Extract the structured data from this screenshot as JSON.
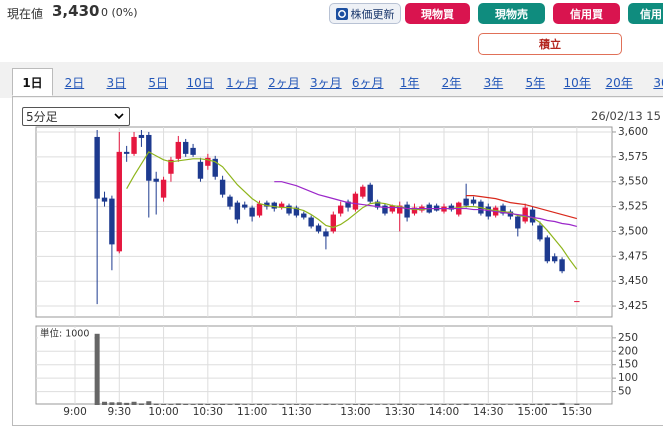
{
  "header": {
    "label": "現在値",
    "price": "3,430",
    "change": "0 (0%)"
  },
  "buttons": {
    "refresh": "株価更新",
    "cash_buy": "現物買",
    "cash_sell": "現物売",
    "margin_buy": "信用買",
    "margin_sell": "信用",
    "savings": "積立"
  },
  "tabs": [
    "1日",
    "2日",
    "3日",
    "5日",
    "10日",
    "1ヶ月",
    "2ヶ月",
    "3ヶ月",
    "6ヶ月",
    "1年",
    "2年",
    "3年",
    "5年",
    "10年",
    "20年",
    "30"
  ],
  "select": "5分足",
  "timestamp": "26/02/13 15",
  "chart_data": {
    "type": "candlestick",
    "categories": [
      "9:00",
      null,
      null,
      null,
      null,
      null,
      "9:30",
      null,
      null,
      null,
      null,
      null,
      "10:00",
      null,
      null,
      null,
      null,
      null,
      "10:30",
      null,
      null,
      null,
      null,
      null,
      "11:00",
      null,
      null,
      null,
      null,
      null,
      "11:30",
      null,
      null,
      null,
      null,
      null,
      null,
      null,
      "13:00",
      null,
      null,
      null,
      null,
      null,
      "13:30",
      null,
      null,
      null,
      null,
      null,
      "14:00",
      null,
      null,
      null,
      null,
      null,
      "14:30",
      null,
      null,
      null,
      null,
      null,
      "15:00",
      null,
      null,
      null,
      null,
      null,
      "15:30"
    ],
    "open": [
      null,
      null,
      null,
      3595,
      3534,
      3533,
      3480,
      3580,
      3578,
      3597,
      3597,
      3553,
      3534,
      3558,
      3573,
      3590,
      3584,
      3570,
      3566,
      3573,
      3552,
      3535,
      3529,
      3527,
      3524,
      3516,
      3529,
      3529,
      3524,
      3526,
      3524,
      3518,
      3514,
      3506,
      3500,
      3500,
      3518,
      3530,
      3522,
      3535,
      3547,
      3530,
      3526,
      3520,
      3518,
      3527,
      3518,
      3521,
      3527,
      3526,
      3520,
      3526,
      3517,
      3533,
      3532,
      3530,
      3525,
      3516,
      3526,
      3520,
      3515,
      3510,
      3522,
      3506,
      3494,
      3475,
      3472,
      null,
      3430
    ],
    "high": [
      null,
      null,
      null,
      3602,
      3540,
      3536,
      3600,
      3586,
      3600,
      3602,
      3600,
      3560,
      3555,
      3575,
      3596,
      3593,
      3588,
      3574,
      3578,
      3576,
      3556,
      3537,
      3531,
      3530,
      3526,
      3531,
      3531,
      3530,
      3530,
      3528,
      3526,
      3520,
      3516,
      3508,
      3503,
      3520,
      3530,
      3532,
      3540,
      3547,
      3549,
      3532,
      3528,
      3527,
      3530,
      3530,
      3528,
      3527,
      3529,
      3528,
      3528,
      3528,
      3530,
      3548,
      3535,
      3532,
      3528,
      3526,
      3528,
      3522,
      3517,
      3528,
      3525,
      3510,
      3496,
      3478,
      3474,
      null,
      3430
    ],
    "low": [
      null,
      null,
      null,
      3427,
      3525,
      3461,
      3478,
      3570,
      3576,
      3585,
      3514,
      3517,
      3530,
      3550,
      3570,
      3575,
      3575,
      3550,
      3562,
      3552,
      3534,
      3522,
      3508,
      3522,
      3510,
      3514,
      3522,
      3520,
      3522,
      3516,
      3514,
      3512,
      3503,
      3498,
      3482,
      3498,
      3515,
      3520,
      3520,
      3533,
      3528,
      3522,
      3516,
      3518,
      3500,
      3510,
      3516,
      3519,
      3518,
      3520,
      3518,
      3520,
      3515,
      3524,
      3526,
      3516,
      3512,
      3514,
      3516,
      3512,
      3495,
      3508,
      3506,
      3490,
      3468,
      3468,
      3458,
      null,
      3430
    ],
    "close": [
      null,
      null,
      null,
      3533,
      3530,
      3487,
      3580,
      3578,
      3595,
      3594,
      3551,
      3550,
      3552,
      3572,
      3590,
      3578,
      3577,
      3553,
      3574,
      3555,
      3537,
      3525,
      3512,
      3524,
      3515,
      3528,
      3525,
      3523,
      3528,
      3518,
      3516,
      3514,
      3505,
      3500,
      3495,
      3517,
      3526,
      3524,
      3538,
      3545,
      3530,
      3524,
      3518,
      3526,
      3526,
      3514,
      3524,
      3525,
      3519,
      3521,
      3525,
      3522,
      3529,
      3526,
      3528,
      3518,
      3515,
      3524,
      3518,
      3515,
      3503,
      3524,
      3509,
      3492,
      3470,
      3470,
      3460,
      null,
      3430
    ],
    "up_color": "#e5173f",
    "down_color": "#1d3a8f",
    "series": [
      {
        "color": "#8fb51c",
        "values": [
          null,
          null,
          null,
          null,
          null,
          null,
          null,
          3543,
          3556,
          3568,
          3580,
          3576,
          3572,
          3570,
          3571,
          3572,
          3573,
          3573,
          3572,
          3570,
          3565,
          3556,
          3547,
          3540,
          3533,
          3528,
          3526,
          3525,
          3524,
          3524,
          3523,
          3521,
          3517,
          3512,
          3506,
          3504,
          3507,
          3512,
          3518,
          3524,
          3528,
          3529,
          3528,
          3526,
          3525,
          3523,
          3522,
          3522,
          3523,
          3523,
          3523,
          3523,
          3524,
          3525,
          3525,
          3524,
          3522,
          3521,
          3520,
          3519,
          3516,
          3515,
          3514,
          3509,
          3501,
          3492,
          3483,
          3472,
          3462
        ]
      },
      {
        "color": "#9b27c9",
        "values": [
          null,
          null,
          null,
          null,
          null,
          null,
          null,
          null,
          null,
          null,
          null,
          null,
          null,
          null,
          null,
          null,
          null,
          null,
          null,
          null,
          null,
          null,
          null,
          null,
          null,
          null,
          null,
          3550,
          3550,
          3548,
          3546,
          3543,
          3540,
          3537,
          3535,
          3533,
          3531,
          3529,
          3528,
          3527,
          3526,
          3525,
          3524,
          3524,
          3524,
          3523,
          3523,
          3523,
          3523,
          3523,
          3523,
          3523,
          3523,
          3523,
          3522,
          3522,
          3521,
          3520,
          3519,
          3518,
          3517,
          3516,
          3514,
          3513,
          3511,
          3510,
          3508,
          3507,
          3505
        ]
      },
      {
        "color": "#d9291c",
        "values": [
          null,
          null,
          null,
          null,
          null,
          null,
          null,
          null,
          null,
          null,
          null,
          null,
          null,
          null,
          null,
          null,
          null,
          null,
          null,
          null,
          null,
          null,
          null,
          null,
          null,
          null,
          null,
          null,
          null,
          null,
          null,
          null,
          null,
          null,
          null,
          null,
          null,
          null,
          null,
          null,
          null,
          null,
          null,
          null,
          null,
          null,
          null,
          null,
          null,
          null,
          null,
          null,
          null,
          3536,
          3536,
          3535,
          3534,
          3533,
          3531,
          3529,
          3528,
          3527,
          3525,
          3523,
          3521,
          3519,
          3517,
          3515,
          3513
        ]
      }
    ],
    "ylim": [
      3414,
      3605
    ],
    "yticks": [
      {
        "value": 3425,
        "label": "3,425"
      },
      {
        "value": 3450,
        "label": "3,450"
      },
      {
        "value": 3475,
        "label": "3,475"
      },
      {
        "value": 3500,
        "label": "3,500"
      },
      {
        "value": 3525,
        "label": "3,525"
      },
      {
        "value": 3550,
        "label": "3,550"
      },
      {
        "value": 3575,
        "label": "3,575"
      },
      {
        "value": 3600,
        "label": "3,600"
      }
    ],
    "grid": true,
    "volume": {
      "label": "単位: 1000",
      "color": "#666666",
      "values": [
        null,
        null,
        null,
        265,
        12,
        10,
        10,
        8,
        12,
        6,
        14,
        5,
        4,
        3,
        6,
        4,
        3,
        5,
        4,
        3,
        4,
        3,
        5,
        2,
        3,
        4,
        2,
        2,
        3,
        2,
        3,
        2,
        3,
        2,
        4,
        3,
        2,
        2,
        3,
        4,
        3,
        2,
        2,
        2,
        5,
        3,
        2,
        2,
        2,
        2,
        3,
        2,
        3,
        5,
        2,
        3,
        2,
        3,
        2,
        2,
        5,
        4,
        4,
        5,
        6,
        4,
        8,
        null,
        5
      ],
      "ylim": [
        0,
        294
      ],
      "yticks": [
        50,
        100,
        150,
        200,
        250
      ]
    }
  }
}
